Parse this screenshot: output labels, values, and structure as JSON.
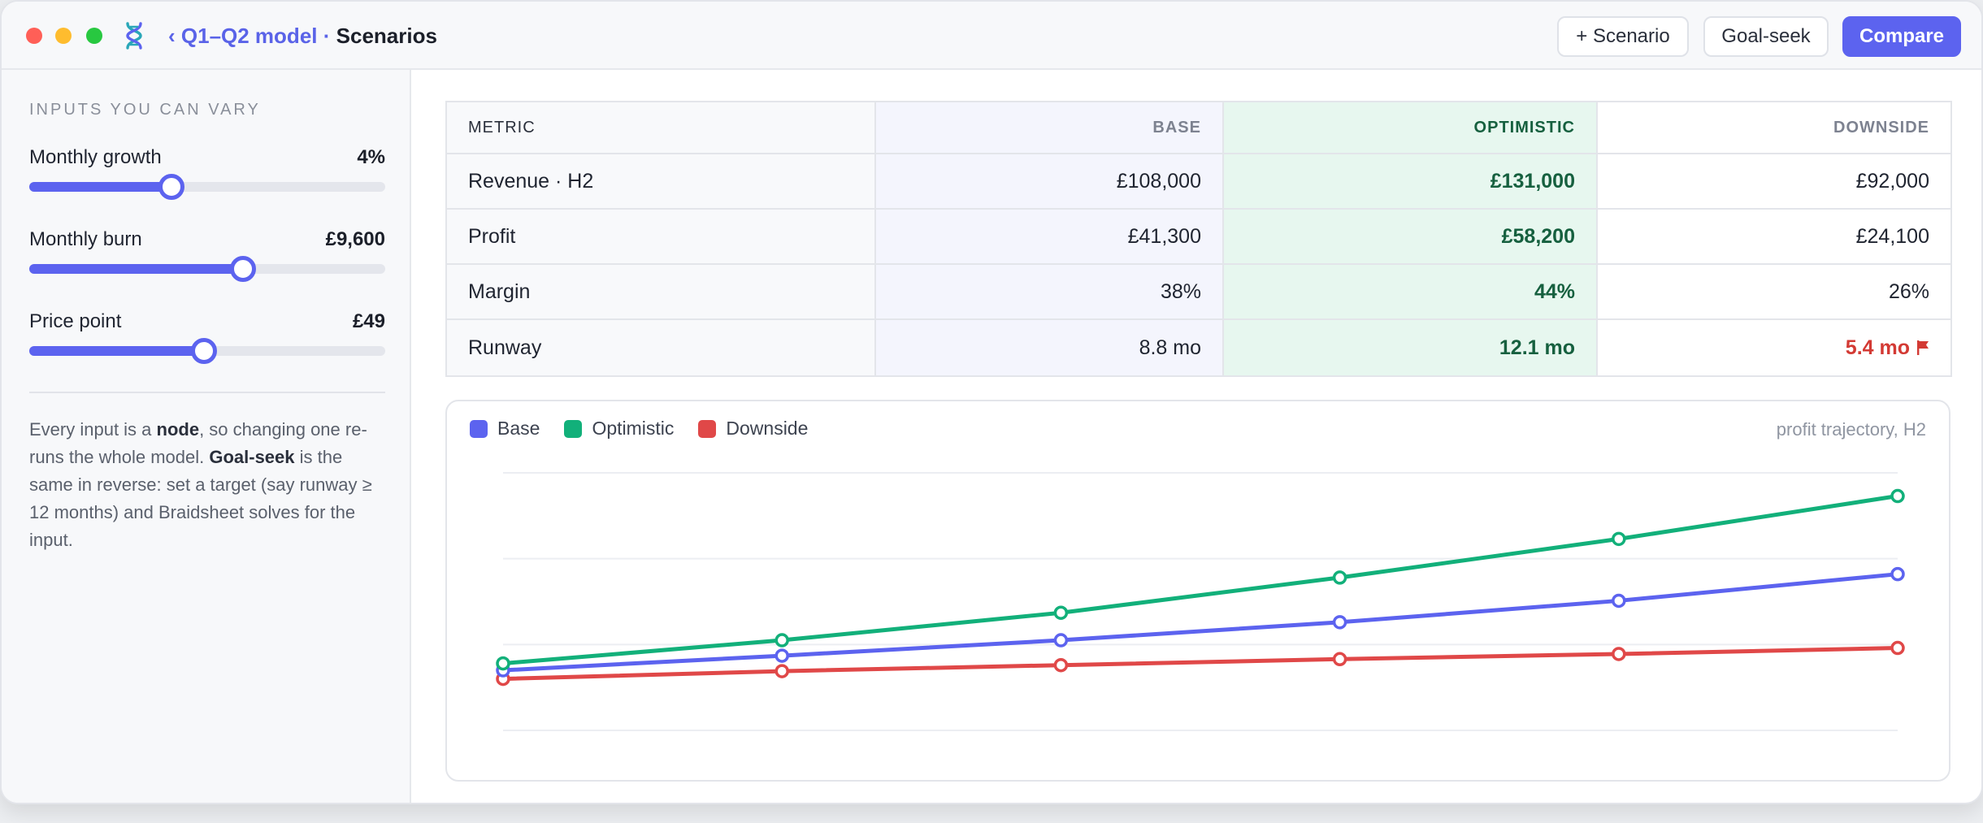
{
  "titlebar": {
    "back_link": "‹ Q1–Q2 model",
    "separator": "·",
    "current": "Scenarios",
    "buttons": {
      "add_scenario": "+ Scenario",
      "goal_seek": "Goal-seek",
      "compare": "Compare"
    }
  },
  "sidebar": {
    "heading": "INPUTS YOU CAN VARY",
    "sliders": [
      {
        "label": "Monthly growth",
        "value": "4%",
        "fill_fraction": 0.4
      },
      {
        "label": "Monthly burn",
        "value": "£9,600",
        "fill_fraction": 0.6
      },
      {
        "label": "Price point",
        "value": "£49",
        "fill_fraction": 0.49
      }
    ],
    "note": {
      "p1": "Every input is a ",
      "b1": "node",
      "p2": ", so changing one re-runs the whole model. ",
      "b2": "Goal-seek",
      "p3": " is the same in reverse: set a target (say runway ≥ 12 months) and Braidsheet solves for the input."
    }
  },
  "table": {
    "headers": [
      "METRIC",
      "BASE",
      "OPTIMISTIC",
      "DOWNSIDE"
    ],
    "rows": [
      [
        "Revenue · H2",
        "£108,000",
        "£131,000",
        "£92,000"
      ],
      [
        "Profit",
        "£41,300",
        "£58,200",
        "£24,100"
      ],
      [
        "Margin",
        "38%",
        "44%",
        "26%"
      ],
      [
        "Runway",
        "8.8 mo",
        "12.1 mo",
        "5.4 mo"
      ]
    ]
  },
  "chart_data": {
    "type": "line",
    "caption": "profit trajectory, H2",
    "x": [
      1,
      2,
      3,
      4,
      5,
      6
    ],
    "ylim": [
      0,
      300
    ],
    "series": [
      {
        "name": "Base",
        "color": "#5c63ef",
        "values": [
          70,
          87,
          105,
          126,
          151,
          182
        ]
      },
      {
        "name": "Optimistic",
        "color": "#12b07a",
        "values": [
          78,
          105,
          137,
          178,
          223,
          273
        ]
      },
      {
        "name": "Downside",
        "color": "#e04848",
        "values": [
          60,
          69,
          76,
          83,
          89,
          96
        ]
      }
    ]
  },
  "colors": {
    "accent": "#5c63ef",
    "optimistic": "#12b07a",
    "downside": "#e04848",
    "danger_text": "#d33a34"
  }
}
